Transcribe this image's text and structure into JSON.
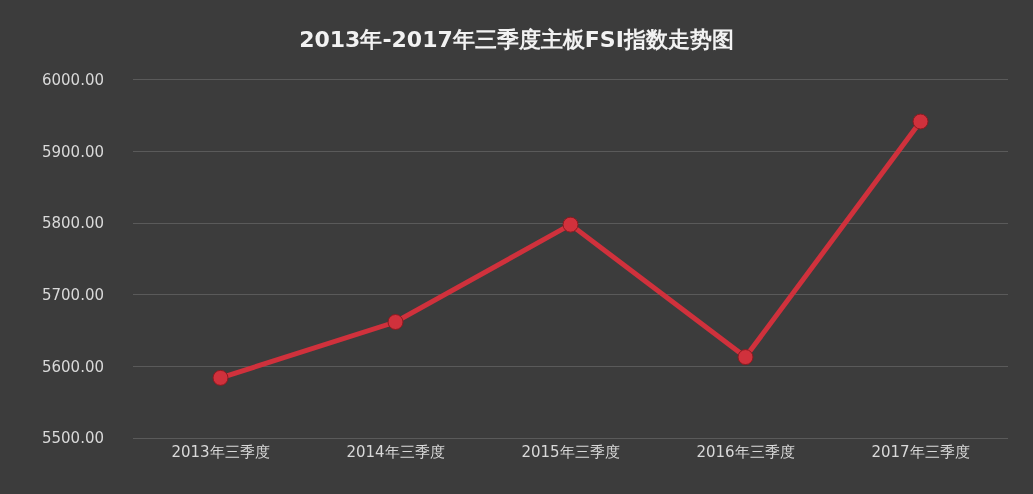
{
  "chart_data": {
    "type": "line",
    "title": "2013年-2017年三季度主板FSI指数走势图",
    "categories": [
      "2013年三季度",
      "2014年三季度",
      "2015年三季度",
      "2016年三季度",
      "2017年三季度"
    ],
    "series": [
      {
        "color": "#d0313c",
        "values": [
          5584,
          5662,
          5798,
          5613,
          5942
        ]
      }
    ],
    "ylim": [
      5500,
      6000
    ],
    "yticks": [
      {
        "value": 5500,
        "label": "5500.00"
      },
      {
        "value": 5600,
        "label": "5600.00"
      },
      {
        "value": 5700,
        "label": "5700.00"
      },
      {
        "value": 5800,
        "label": "5800.00"
      },
      {
        "value": 5900,
        "label": "5900.00"
      },
      {
        "value": 6000,
        "label": "6000.00"
      }
    ],
    "grid": "y",
    "marker": "circle",
    "line_style": "solid"
  }
}
